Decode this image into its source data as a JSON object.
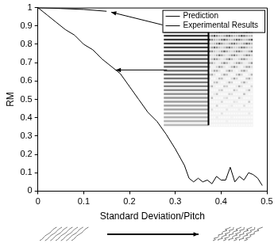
{
  "chart_data": {
    "type": "line",
    "x_label": "Standard Deviation/Pitch",
    "y_label": "RM",
    "xlim": [
      0,
      0.5
    ],
    "xticks": [
      0,
      0.1,
      0.2,
      0.3,
      0.4,
      0.5
    ],
    "ylim": [
      0,
      1
    ],
    "yticks": [
      0,
      0.1,
      0.2,
      0.3,
      0.4,
      0.5,
      0.6,
      0.7,
      0.8,
      0.9,
      1
    ],
    "grid": false,
    "legend": "upper right",
    "series": [
      {
        "name": "Prediction",
        "color": "#000000",
        "x": [
          0,
          0.05,
          0.1,
          0.15
        ],
        "values": [
          1,
          0.995,
          0.99,
          0.98
        ]
      },
      {
        "name": "Experimental Results",
        "color": "#000000",
        "x": [
          0,
          0.02,
          0.04,
          0.06,
          0.08,
          0.1,
          0.12,
          0.14,
          0.16,
          0.18,
          0.2,
          0.22,
          0.24,
          0.26,
          0.28,
          0.3,
          0.32,
          0.33,
          0.34,
          0.35,
          0.36,
          0.37,
          0.38,
          0.39,
          0.4,
          0.41,
          0.42,
          0.43,
          0.44,
          0.45,
          0.46,
          0.47,
          0.48,
          0.49
        ],
        "values": [
          1,
          0.96,
          0.92,
          0.88,
          0.85,
          0.8,
          0.77,
          0.72,
          0.68,
          0.64,
          0.57,
          0.5,
          0.43,
          0.38,
          0.31,
          0.23,
          0.14,
          0.07,
          0.05,
          0.07,
          0.05,
          0.06,
          0.04,
          0.08,
          0.06,
          0.06,
          0.13,
          0.05,
          0.08,
          0.06,
          0.1,
          0.09,
          0.07,
          0.03
        ]
      }
    ]
  }
}
